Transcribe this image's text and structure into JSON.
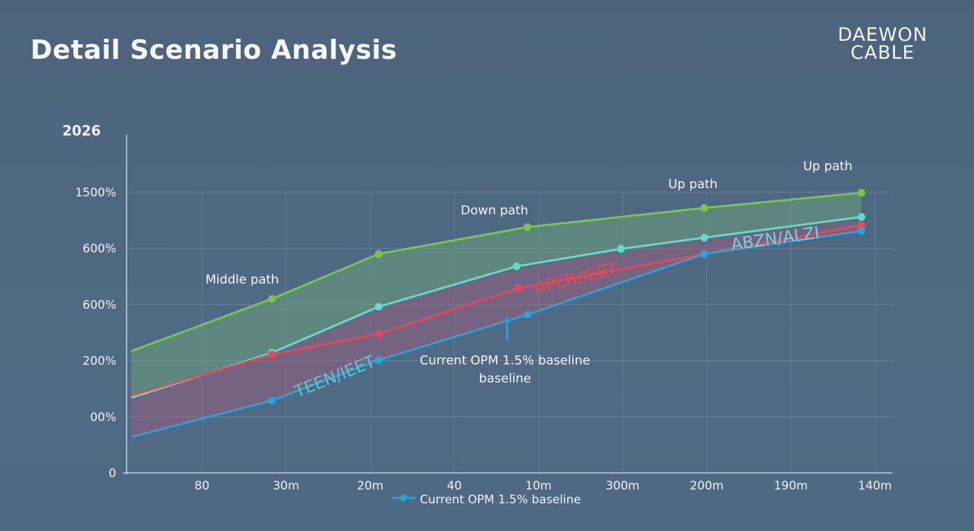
{
  "header": {
    "title": "Detail Scenario Analysis",
    "logo_line1": "DAEWON",
    "logo_line2": "CABLE"
  },
  "chart_data": {
    "type": "line",
    "title": "Detail Scenario Analysis",
    "ylabel": "2026",
    "xlabel": "",
    "x_tick_labels": [
      "80",
      "30m",
      "20m",
      "40",
      "10m",
      "300m",
      "200m",
      "190m",
      "140m"
    ],
    "y_tick_labels": [
      "0",
      "00%",
      "200%",
      "600%",
      "600%",
      "1500%"
    ],
    "ylim": [
      0,
      5.2
    ],
    "grid": true,
    "series": [
      {
        "key": "up",
        "color": "#74c94a",
        "x": [
          -0.84,
          0.83,
          2.1,
          3.87,
          5.97,
          7.84
        ],
        "y": [
          2.17,
          3.1,
          3.9,
          4.38,
          4.72,
          4.99
        ]
      },
      {
        "key": "middle",
        "color": "#62dccf",
        "x": [
          -0.84,
          0.83,
          2.1,
          3.74,
          4.98,
          5.97,
          7.84
        ],
        "y": [
          1.34,
          2.14,
          2.96,
          3.68,
          3.99,
          4.19,
          4.56
        ]
      },
      {
        "key": "down",
        "color": "#e8485a",
        "x": [
          -0.84,
          0.83,
          2.1,
          3.76,
          5.97,
          7.84
        ],
        "y": [
          1.38,
          2.11,
          2.48,
          3.29,
          3.9,
          4.41
        ]
      },
      {
        "key": "baseline",
        "name": "Current OPM 1.5% baseline",
        "color": "#2aa3d8",
        "x": [
          -0.84,
          0.83,
          2.1,
          3.87,
          5.97,
          7.84
        ],
        "y": [
          0.64,
          1.29,
          2.01,
          2.82,
          3.9,
          4.31
        ]
      }
    ],
    "annotations": {
      "middle_path": "Middle path",
      "down_path": "Down path",
      "up_path_1": "Up path",
      "up_path_2": "Up path",
      "baseline_line1": "Current OPM 1.5% baseline",
      "baseline_line2": "baseline",
      "garble_cyan_1": "TEEN/IEET",
      "garble_red": "APER/IEET",
      "garble_cyan_2": "ABZN/ALZI"
    },
    "legend": {
      "position": "bottom",
      "label": "Current OPM 1.5% baseline",
      "color": "#2aa3d8"
    }
  }
}
